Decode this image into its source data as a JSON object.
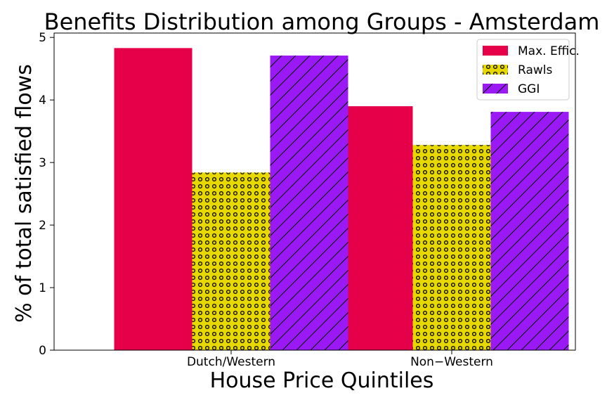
{
  "chart_data": {
    "type": "bar",
    "title": "Benefits Distribution among Groups - Amsterdam",
    "xlabel": "House Price Quintiles",
    "ylabel": "% of total satisfied flows",
    "categories": [
      "Dutch/Western",
      "Non−Western"
    ],
    "ylim": [
      0,
      5.07
    ],
    "yticks": [
      "0",
      "1",
      "2",
      "3",
      "4",
      "5"
    ],
    "grid": false,
    "legend_position": "top-right",
    "series": [
      {
        "name": "Max. Effic.",
        "values": [
          4.83,
          3.9
        ],
        "color": "#e60049",
        "pattern": "solid"
      },
      {
        "name": "Rawls",
        "values": [
          2.84,
          3.28
        ],
        "color": "#e6d800",
        "pattern": "dots"
      },
      {
        "name": "GGI",
        "values": [
          4.71,
          3.81
        ],
        "color": "#9b19f5",
        "pattern": "hatch"
      }
    ]
  }
}
